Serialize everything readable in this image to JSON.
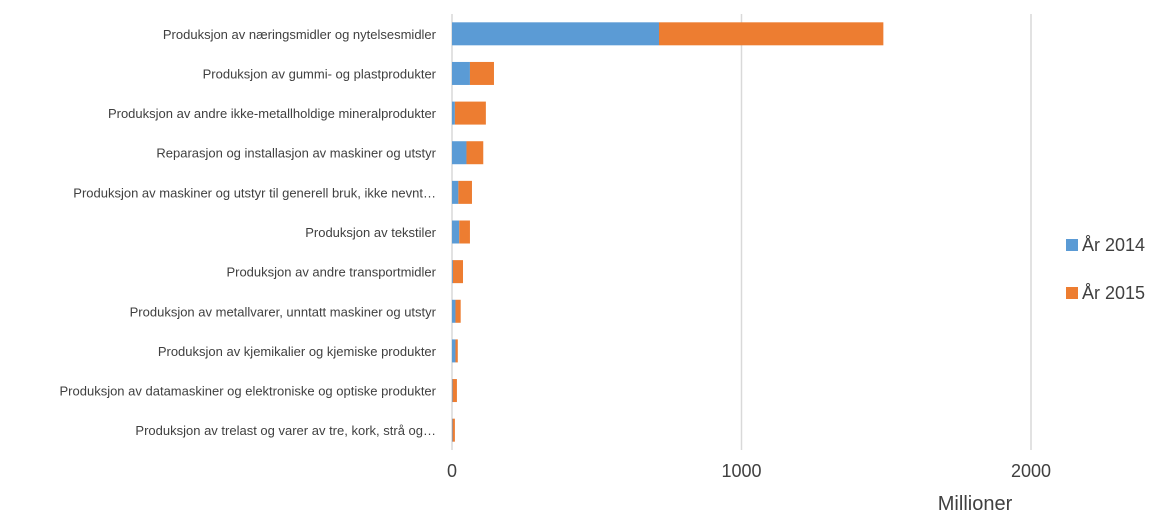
{
  "chart_data": {
    "type": "bar",
    "orientation": "horizontal",
    "stacked": true,
    "categories": [
      "Produksjon av næringsmidler og nytelsesmidler",
      "Produksjon av gummi- og plastprodukter",
      "Produksjon av andre ikke-metallholdige mineralprodukter",
      "Reparasjon og installasjon av maskiner og utstyr",
      "Produksjon av maskiner og utstyr til generell bruk, ikke nevnt…",
      "Produksjon av tekstiler",
      "Produksjon av andre transportmidler",
      "Produksjon av metallvarer, unntatt maskiner og utstyr",
      "Produksjon av kjemikalier og kjemiske produkter",
      "Produksjon av datamaskiner og elektroniske og optiske produkter",
      "Produksjon av trelast og varer av tre, kork, strå og…"
    ],
    "series": [
      {
        "name": "År 2014",
        "color": "#5B9BD5",
        "values": [
          715,
          62,
          10,
          50,
          22,
          25,
          3,
          12,
          12,
          2,
          2
        ]
      },
      {
        "name": "År 2015",
        "color": "#ED7D31",
        "values": [
          775,
          83,
          107,
          58,
          47,
          37,
          35,
          18,
          8,
          15,
          8
        ]
      }
    ],
    "xticks": [
      "0",
      "1000",
      "2000"
    ],
    "xtick_values": [
      0,
      1000,
      2000
    ],
    "xlim": [
      0,
      2000
    ],
    "unit_label": "Millioner",
    "grid": "vertical",
    "legend_position": "right"
  }
}
